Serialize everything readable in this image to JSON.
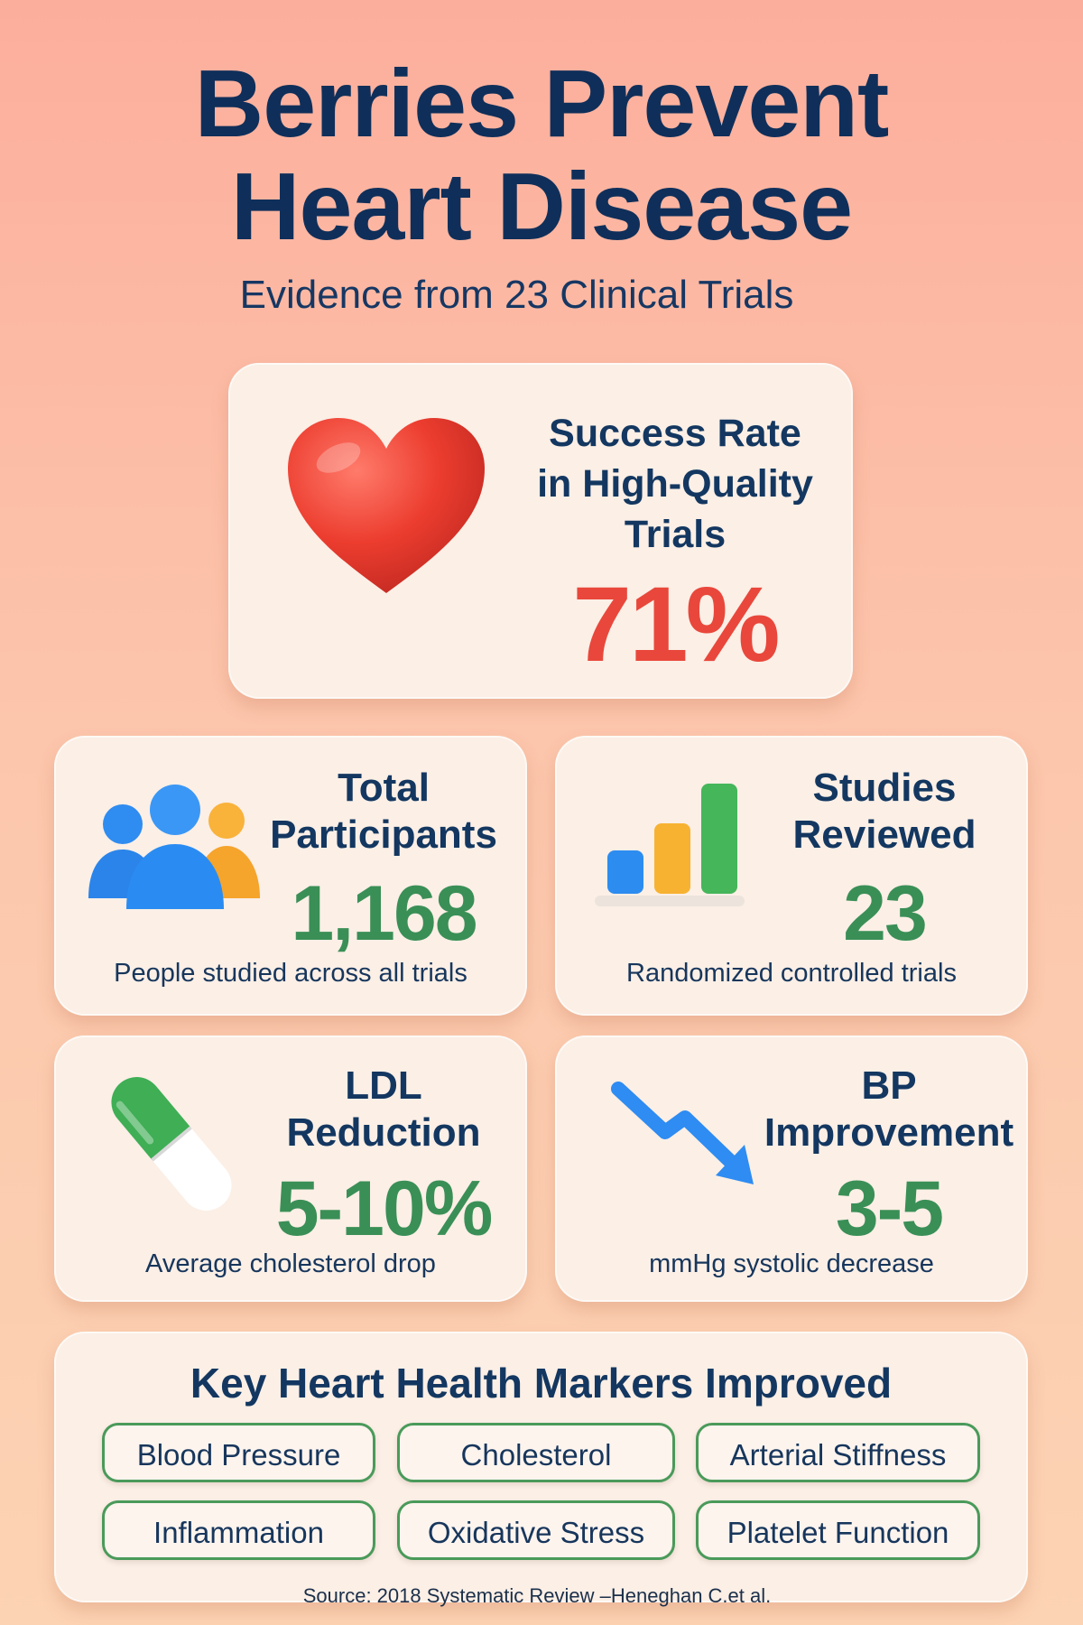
{
  "header": {
    "title_line1": "Berries Prevent",
    "title_line2": "Heart Disease",
    "subtitle": "Evidence from 23 Clinical Trials"
  },
  "hero": {
    "label_line1": "Success Rate",
    "label_line2": "in High-Quality",
    "label_line3": "Trials",
    "value": "71%",
    "icon": "heart-icon",
    "value_color": "#e9473b"
  },
  "stats": [
    {
      "title_line1": "Total",
      "title_line2": "Participants",
      "value": "1,168",
      "description": "People studied across all trials",
      "icon": "people-icon"
    },
    {
      "title_line1": "Studies",
      "title_line2": "Reviewed",
      "value": "23",
      "description": "Randomized controlled trials",
      "icon": "bar-chart-icon"
    },
    {
      "title_line1": "LDL",
      "title_line2": "Reduction",
      "value": "5-10%",
      "description": "Average cholesterol drop",
      "icon": "pill-icon"
    },
    {
      "title_line1": "BP",
      "title_line2": "Improvement",
      "value": "3-5",
      "description": "mmHg systolic decrease",
      "icon": "trend-down-arrow-icon"
    }
  ],
  "markers": {
    "title": "Key Heart Health Markers Improved",
    "items": [
      "Blood Pressure",
      "Cholesterol",
      "Arterial Stiffness",
      "Inflammation",
      "Oxidative Stress",
      "Platelet Function"
    ]
  },
  "source": "Source: 2018 Systematic Review –Heneghan C.et al.",
  "colors": {
    "title": "#0f2f5a",
    "accent_red": "#e9473b",
    "accent_green": "#3a8f56",
    "card_bg": "#fbefe6"
  }
}
